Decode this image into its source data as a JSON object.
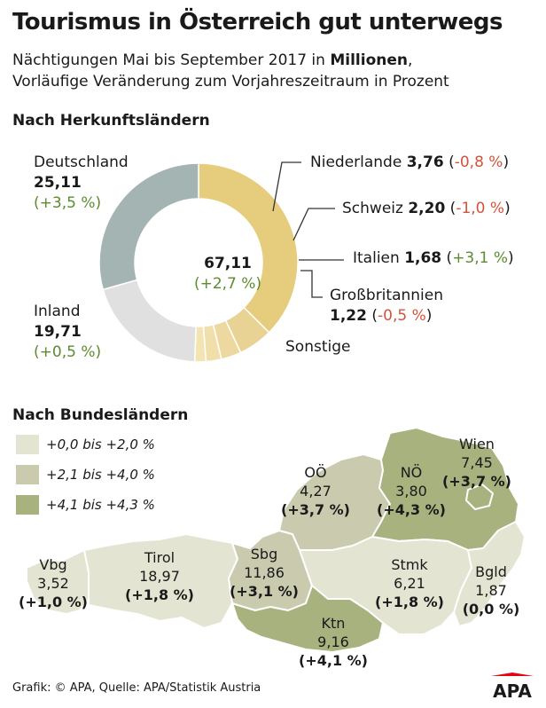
{
  "title": "Tourismus in Österreich gut unterwegs",
  "subtitle": {
    "line1_before": "Nächtigungen Mai bis September 2017 in ",
    "line1_bold": "Millionen",
    "line1_after": ",",
    "line2": "Vorläufige Veränderung zum Vorjahreszeitraum in Prozent"
  },
  "footer": "Grafik: © APA, Quelle: APA/Statistik Austria",
  "logo_text": "APA",
  "colors": {
    "positive": "#5c8c2e",
    "negative": "#d4533b",
    "accent_logo": "#e30613"
  },
  "chart_data": [
    {
      "type": "pie",
      "title": "Nach Herkunftsländern",
      "center_value": "67,11",
      "center_change": "(+2,7 %)",
      "slices": [
        {
          "name": "Deutschland",
          "value": 25.11,
          "value_label": "25,11",
          "change": "(+3,5 %)",
          "color": "#e6cc7d"
        },
        {
          "name": "Niederlande",
          "value": 3.76,
          "value_label": "3,76",
          "change": "-0,8 %",
          "color": "#e9d394"
        },
        {
          "name": "Schweiz",
          "value": 2.2,
          "value_label": "2,20",
          "change": "-1,0 %",
          "color": "#edd9a0"
        },
        {
          "name": "Italien",
          "value": 1.68,
          "value_label": "1,68",
          "change": "+3,1 %",
          "color": "#f0dfaa"
        },
        {
          "name": "Großbritannien",
          "value": 1.22,
          "value_label": "1,22",
          "change": "-0,5 %",
          "color": "#f3e4b2"
        },
        {
          "name": "Sonstige",
          "value": 13.43,
          "value_label": "",
          "change": "",
          "color": "#e0e0e0"
        },
        {
          "name": "Inland",
          "value": 19.71,
          "value_label": "19,71",
          "change": "(+0,5 %)",
          "color": "#a3b4b3"
        }
      ]
    },
    {
      "type": "choropleth",
      "title": "Nach Bundesländern",
      "legend": [
        {
          "label": "+0,0 bis +2,0 %",
          "color": "#e4e4d3"
        },
        {
          "label": "+2,1 bis +4,0 %",
          "color": "#c9caae"
        },
        {
          "label": "+4,1 bis +4,3 %",
          "color": "#a7b27e"
        }
      ],
      "regions": [
        {
          "name": "Vbg",
          "value": "3,52",
          "change": "(+1,0 %)"
        },
        {
          "name": "Tirol",
          "value": "18,97",
          "change": "(+1,8 %)"
        },
        {
          "name": "Sbg",
          "value": "11,86",
          "change": "(+3,1 %)"
        },
        {
          "name": "OÖ",
          "value": "4,27",
          "change": "(+3,7 %)"
        },
        {
          "name": "NÖ",
          "value": "3,80",
          "change": "(+4,3 %)"
        },
        {
          "name": "Wien",
          "value": "7,45",
          "change": "(+3,7 %)"
        },
        {
          "name": "Stmk",
          "value": "6,21",
          "change": "(+1,8 %)"
        },
        {
          "name": "Ktn",
          "value": "9,16",
          "change": "(+4,1 %)"
        },
        {
          "name": "Bgld",
          "value": "1,87",
          "change": "(0,0 %)"
        }
      ]
    }
  ]
}
